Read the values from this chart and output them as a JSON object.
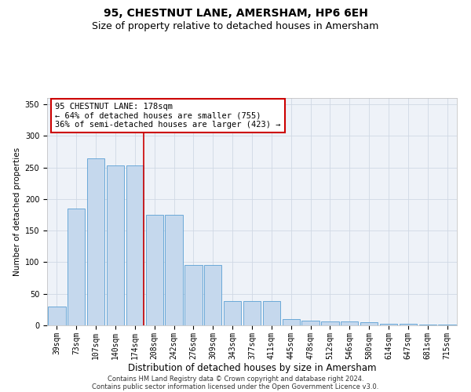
{
  "title": "95, CHESTNUT LANE, AMERSHAM, HP6 6EH",
  "subtitle": "Size of property relative to detached houses in Amersham",
  "xlabel": "Distribution of detached houses by size in Amersham",
  "ylabel": "Number of detached properties",
  "categories": [
    "39sqm",
    "73sqm",
    "107sqm",
    "140sqm",
    "174sqm",
    "208sqm",
    "242sqm",
    "276sqm",
    "309sqm",
    "343sqm",
    "377sqm",
    "411sqm",
    "445sqm",
    "478sqm",
    "512sqm",
    "546sqm",
    "580sqm",
    "614sqm",
    "647sqm",
    "681sqm",
    "715sqm"
  ],
  "values": [
    30,
    185,
    265,
    253,
    253,
    175,
    175,
    95,
    95,
    38,
    38,
    38,
    10,
    7,
    6,
    6,
    5,
    3,
    2,
    1,
    1
  ],
  "bar_color": "#c5d8ed",
  "bar_edge_color": "#5a9fd4",
  "red_line_index": 4,
  "annotation_text": "95 CHESTNUT LANE: 178sqm\n← 64% of detached houses are smaller (755)\n36% of semi-detached houses are larger (423) →",
  "annotation_box_color": "#ffffff",
  "annotation_box_edge": "#cc0000",
  "red_line_color": "#cc0000",
  "ylim": [
    0,
    360
  ],
  "yticks": [
    0,
    50,
    100,
    150,
    200,
    250,
    300,
    350
  ],
  "grid_color": "#d0d8e4",
  "background_color": "#eef2f8",
  "footer_line1": "Contains HM Land Registry data © Crown copyright and database right 2024.",
  "footer_line2": "Contains public sector information licensed under the Open Government Licence v3.0.",
  "title_fontsize": 10,
  "subtitle_fontsize": 9,
  "xlabel_fontsize": 8.5,
  "ylabel_fontsize": 7.5,
  "tick_fontsize": 7,
  "annotation_fontsize": 7.5,
  "footer_fontsize": 6
}
